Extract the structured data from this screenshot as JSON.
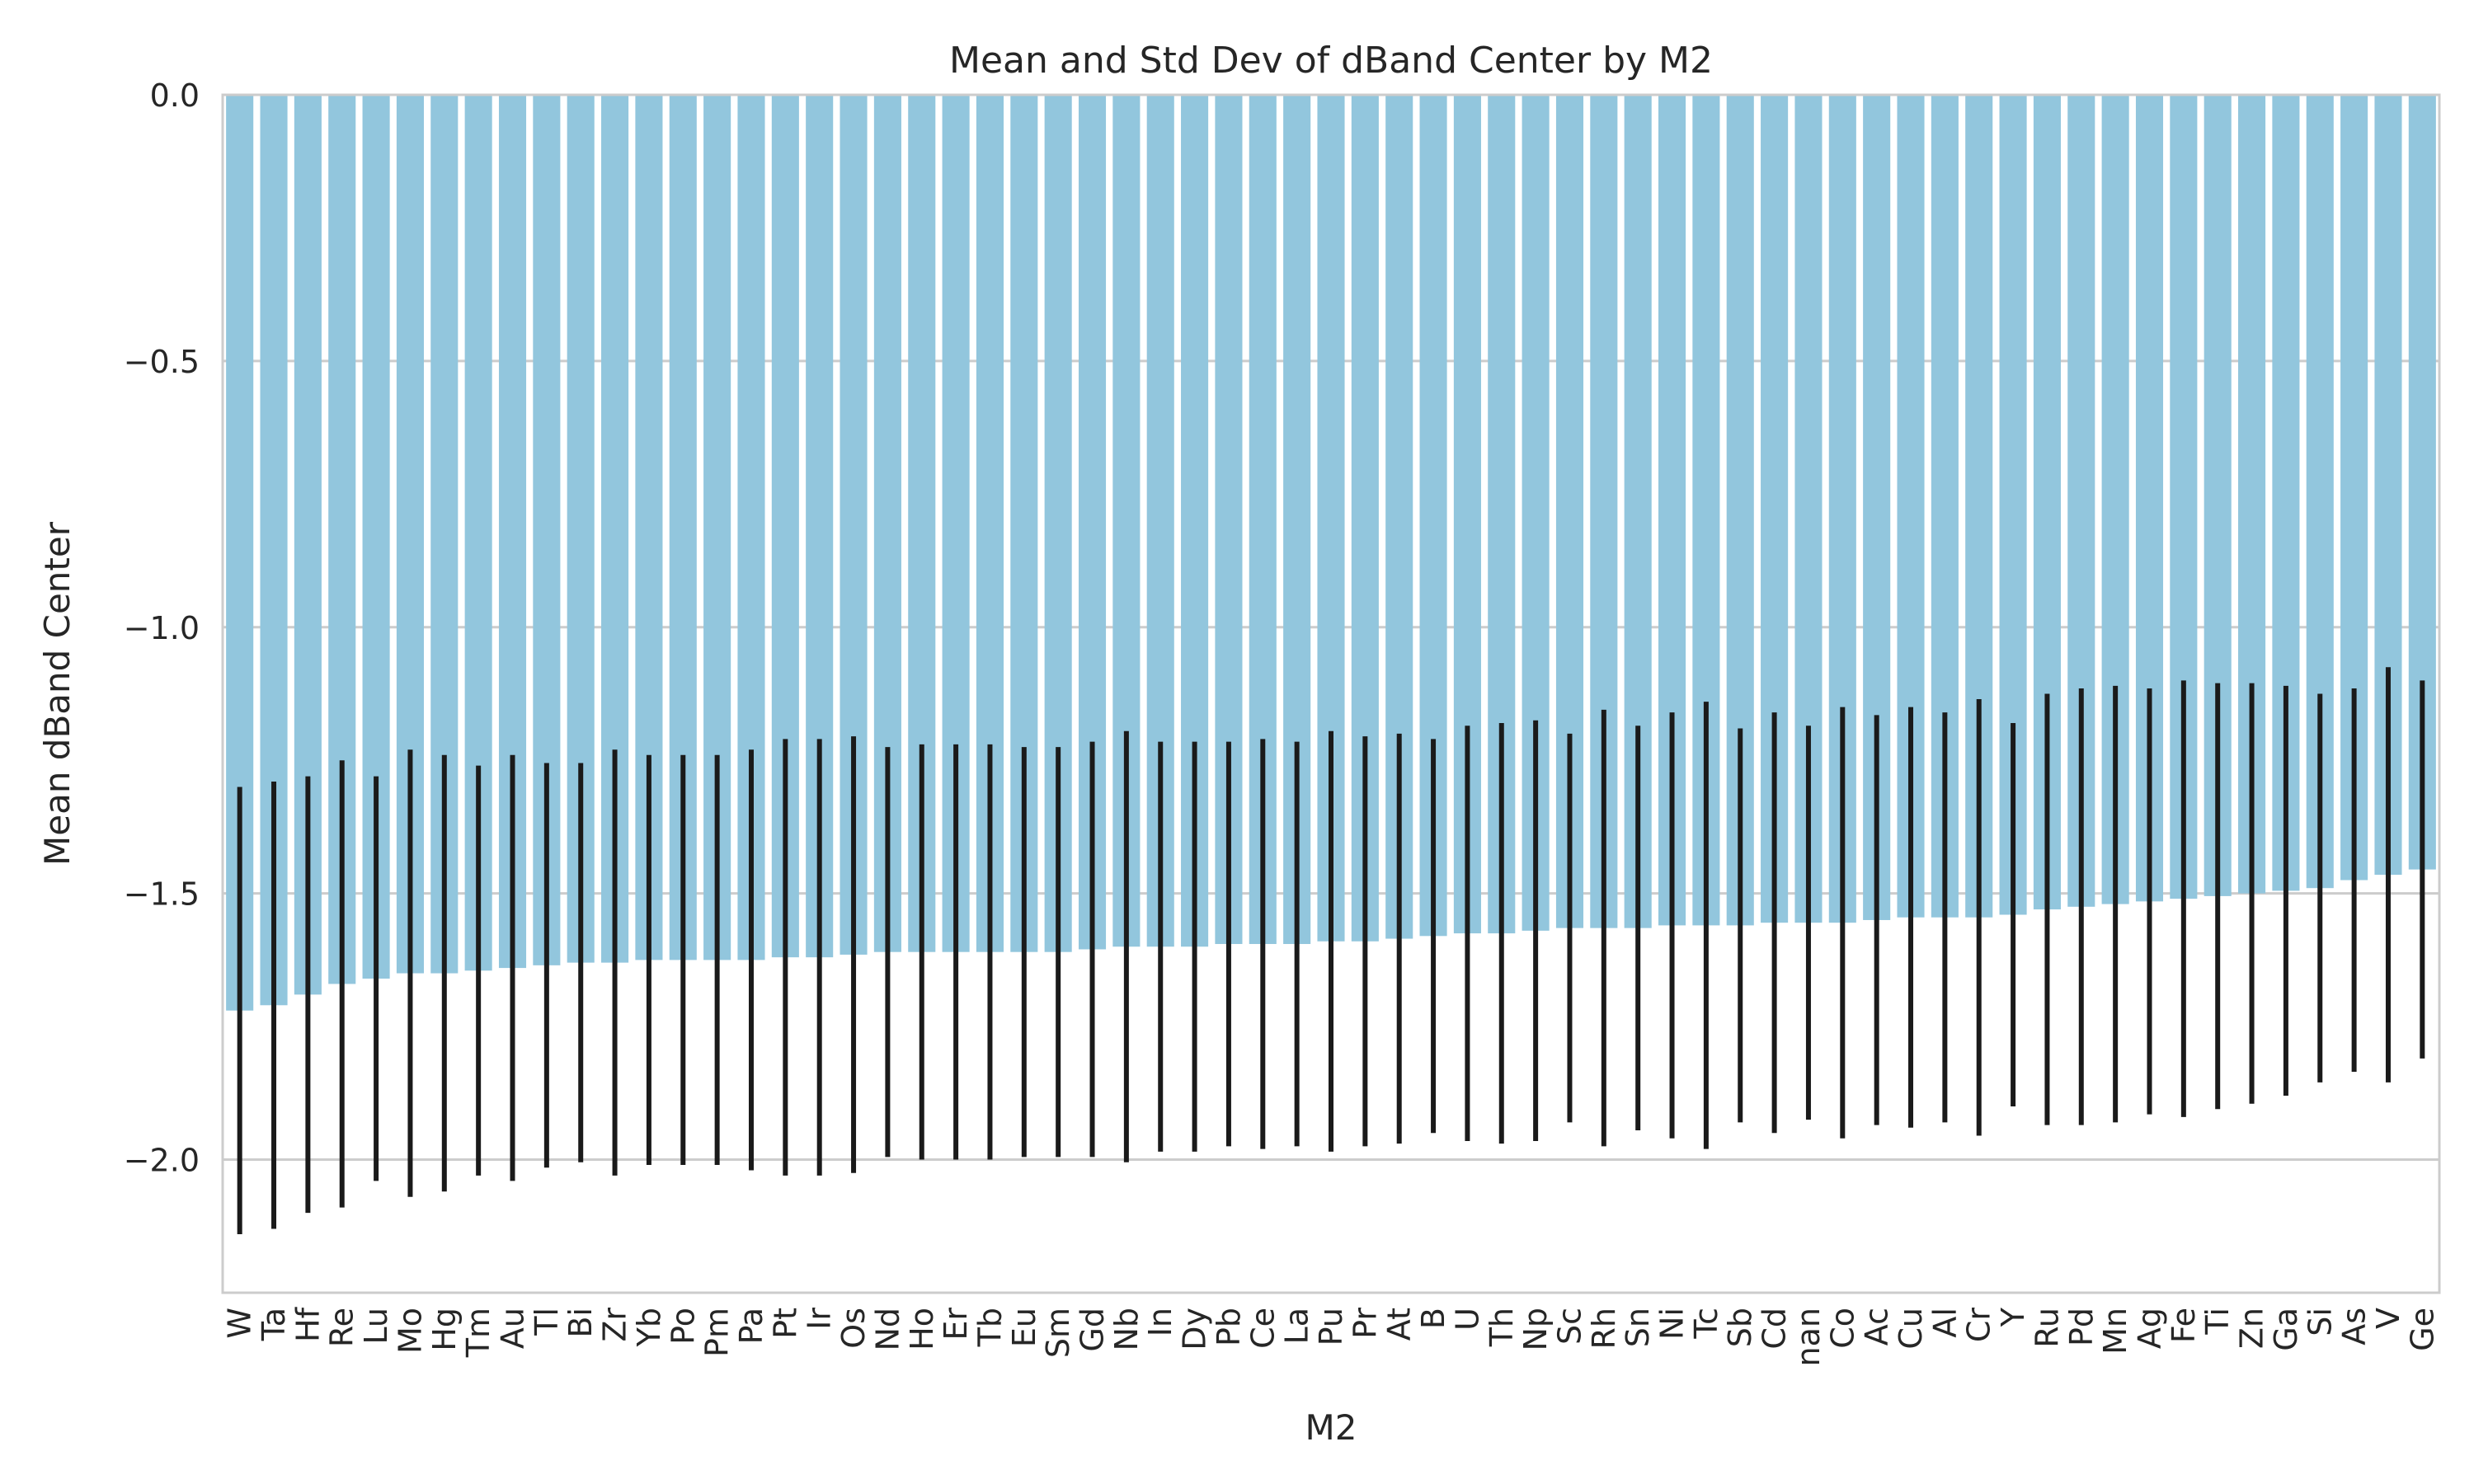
{
  "chart_data": {
    "type": "bar",
    "title": "Mean and Std Dev of dBand Center by M2",
    "xlabel": "M2",
    "ylabel": "Mean dBand Center",
    "ylim": [
      -2.25,
      0.0
    ],
    "yticks": [
      0.0,
      -0.5,
      -1.0,
      -1.5,
      -2.0
    ],
    "ytick_labels": [
      "0.0",
      "−0.5",
      "−1.0",
      "−1.5",
      "−2.0"
    ],
    "grid": "horizontal",
    "bar_color": "#92c6dd",
    "error_color": "#1a1a1a",
    "categories": [
      "W",
      "Ta",
      "Hf",
      "Re",
      "Lu",
      "Mo",
      "Hg",
      "Tm",
      "Au",
      "Tl",
      "Bi",
      "Zr",
      "Yb",
      "Po",
      "Pm",
      "Pa",
      "Pt",
      "Ir",
      "Os",
      "Nd",
      "Ho",
      "Er",
      "Tb",
      "Eu",
      "Sm",
      "Gd",
      "Nb",
      "In",
      "Dy",
      "Pb",
      "Ce",
      "La",
      "Pu",
      "Pr",
      "At",
      "B",
      "U",
      "Th",
      "Np",
      "Sc",
      "Rh",
      "Sn",
      "Ni",
      "Tc",
      "Sb",
      "Cd",
      "nan",
      "Co",
      "Ac",
      "Cu",
      "Al",
      "Cr",
      "Y",
      "Ru",
      "Pd",
      "Mn",
      "Ag",
      "Fe",
      "Ti",
      "Zn",
      "Ga",
      "Si",
      "As",
      "V",
      "Ge"
    ],
    "series": [
      {
        "values": [
          -1.72,
          -1.71,
          -1.69,
          -1.67,
          -1.66,
          -1.65,
          -1.65,
          -1.645,
          -1.64,
          -1.635,
          -1.63,
          -1.63,
          -1.625,
          -1.625,
          -1.625,
          -1.625,
          -1.62,
          -1.62,
          -1.615,
          -1.61,
          -1.61,
          -1.61,
          -1.61,
          -1.61,
          -1.61,
          -1.605,
          -1.6,
          -1.6,
          -1.6,
          -1.595,
          -1.595,
          -1.595,
          -1.59,
          -1.59,
          -1.585,
          -1.58,
          -1.575,
          -1.575,
          -1.57,
          -1.565,
          -1.565,
          -1.565,
          -1.56,
          -1.56,
          -1.56,
          -1.555,
          -1.555,
          -1.555,
          -1.55,
          -1.545,
          -1.545,
          -1.545,
          -1.54,
          -1.53,
          -1.525,
          -1.52,
          -1.515,
          -1.51,
          -1.505,
          -1.5,
          -1.495,
          -1.49,
          -1.475,
          -1.465,
          -1.455
        ],
        "std": [
          0.42,
          0.42,
          0.41,
          0.42,
          0.38,
          0.42,
          0.41,
          0.385,
          0.4,
          0.38,
          0.375,
          0.4,
          0.385,
          0.385,
          0.385,
          0.395,
          0.41,
          0.41,
          0.41,
          0.385,
          0.39,
          0.39,
          0.39,
          0.385,
          0.385,
          0.39,
          0.405,
          0.385,
          0.385,
          0.38,
          0.385,
          0.38,
          0.395,
          0.385,
          0.385,
          0.37,
          0.39,
          0.395,
          0.395,
          0.365,
          0.41,
          0.38,
          0.4,
          0.42,
          0.37,
          0.395,
          0.37,
          0.405,
          0.385,
          0.395,
          0.385,
          0.41,
          0.36,
          0.405,
          0.41,
          0.41,
          0.4,
          0.41,
          0.4,
          0.395,
          0.385,
          0.365,
          0.36,
          0.39,
          0.355
        ]
      }
    ]
  }
}
